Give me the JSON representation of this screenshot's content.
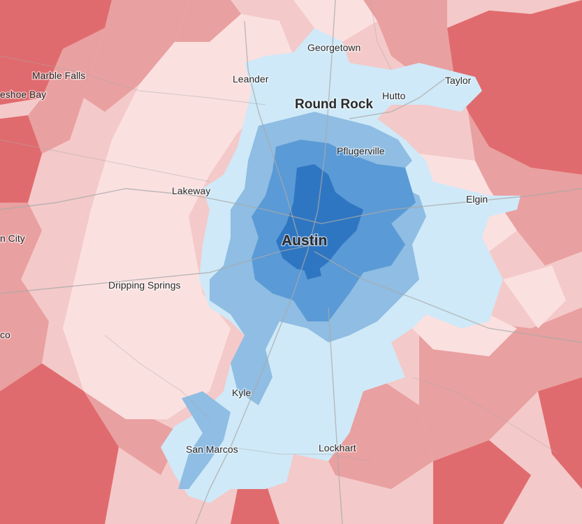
{
  "map": {
    "colors": {
      "strong_rep": "#e06b6e",
      "rep": "#e9a0a0",
      "lean_rep": "#f4c9c9",
      "tilt_rep": "#fbe0e0",
      "tilt_dem": "#cfe9f8",
      "lean_dem": "#8fbde3",
      "dem": "#5a9ad6",
      "strong_dem": "#2f76c2",
      "road": "#a9a9a9"
    },
    "labels": {
      "georgetown": "Georgetown",
      "leander": "Leander",
      "round_rock": "Round Rock",
      "hutto": "Hutto",
      "taylor": "Taylor",
      "marble_falls": "Marble Falls",
      "horseshoe_bay": "eshoe Bay",
      "pflugerville": "Pflugerville",
      "lakeway": "Lakeway",
      "elgin": "Elgin",
      "austin": "Austin",
      "city_fragment": "n City",
      "dripping_springs": "Dripping Springs",
      "co_fragment": "co",
      "kyle": "Kyle",
      "san_marcos": "San Marcos",
      "lockhart": "Lockhart"
    }
  }
}
